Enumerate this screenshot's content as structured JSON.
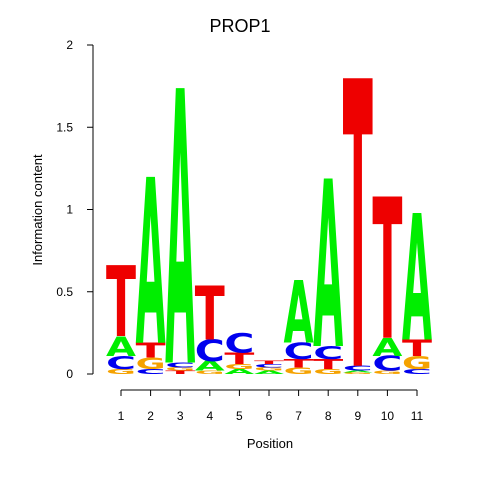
{
  "chart_data": {
    "type": "sequence-logo",
    "title": "PROP1",
    "xlabel": "Position",
    "ylabel": "Information content",
    "ylim": [
      0,
      2
    ],
    "yticks": [
      "0",
      "0.5",
      "1",
      "1.5",
      "2"
    ],
    "positions": [
      "1",
      "2",
      "3",
      "4",
      "5",
      "6",
      "7",
      "8",
      "9",
      "10",
      "11"
    ],
    "colors": {
      "A": "#00ee00",
      "C": "#0000ee",
      "G": "#f5a200",
      "T": "#ee0000"
    },
    "stacks": [
      [
        {
          "letter": "G",
          "height": 0.03
        },
        {
          "letter": "C",
          "height": 0.08
        },
        {
          "letter": "A",
          "height": 0.12
        },
        {
          "letter": "T",
          "height": 0.43
        }
      ],
      [
        {
          "letter": "C",
          "height": 0.03
        },
        {
          "letter": "G",
          "height": 0.07
        },
        {
          "letter": "T",
          "height": 0.09
        },
        {
          "letter": "A",
          "height": 1.01
        }
      ],
      [
        {
          "letter": "T",
          "height": 0.02
        },
        {
          "letter": "G",
          "height": 0.02
        },
        {
          "letter": "C",
          "height": 0.03
        },
        {
          "letter": "A",
          "height": 1.67
        }
      ],
      [
        {
          "letter": "G",
          "height": 0.02
        },
        {
          "letter": "A",
          "height": 0.06
        },
        {
          "letter": "C",
          "height": 0.13
        },
        {
          "letter": "T",
          "height": 0.33
        }
      ],
      [
        {
          "letter": "A",
          "height": 0.03
        },
        {
          "letter": "G",
          "height": 0.03
        },
        {
          "letter": "T",
          "height": 0.07
        },
        {
          "letter": "C",
          "height": 0.12
        }
      ],
      [
        {
          "letter": "A",
          "height": 0.02
        },
        {
          "letter": "G",
          "height": 0.02
        },
        {
          "letter": "C",
          "height": 0.02
        },
        {
          "letter": "T",
          "height": 0.02
        }
      ],
      [
        {
          "letter": "G",
          "height": 0.04
        },
        {
          "letter": "T",
          "height": 0.05
        },
        {
          "letter": "C",
          "height": 0.1
        },
        {
          "letter": "A",
          "height": 0.38
        }
      ],
      [
        {
          "letter": "G",
          "height": 0.03
        },
        {
          "letter": "T",
          "height": 0.06
        },
        {
          "letter": "C",
          "height": 0.08
        },
        {
          "letter": "A",
          "height": 1.02
        }
      ],
      [
        {
          "letter": "G",
          "height": 0.01
        },
        {
          "letter": "A",
          "height": 0.01
        },
        {
          "letter": "C",
          "height": 0.03
        },
        {
          "letter": "T",
          "height": 1.75
        }
      ],
      [
        {
          "letter": "G",
          "height": 0.02
        },
        {
          "letter": "C",
          "height": 0.09
        },
        {
          "letter": "A",
          "height": 0.11
        },
        {
          "letter": "T",
          "height": 0.86
        }
      ],
      [
        {
          "letter": "C",
          "height": 0.03
        },
        {
          "letter": "G",
          "height": 0.08
        },
        {
          "letter": "T",
          "height": 0.1
        },
        {
          "letter": "A",
          "height": 0.77
        }
      ]
    ]
  }
}
